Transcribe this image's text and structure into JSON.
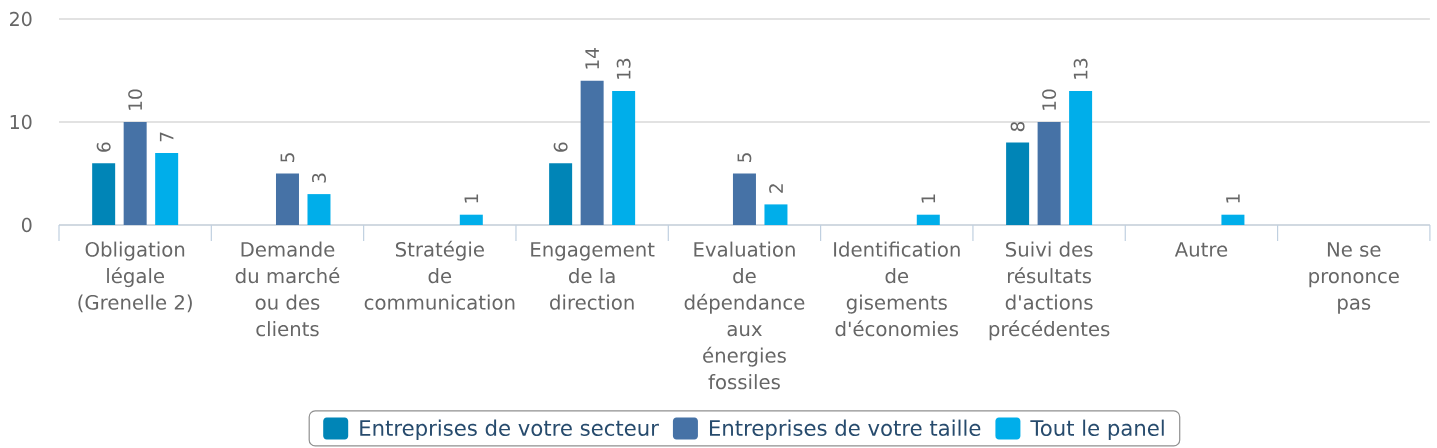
{
  "chart_data": {
    "type": "bar",
    "categories": [
      "Obligation légale (Grenelle 2)",
      "Demande du marché ou des clients",
      "Stratégie de communication",
      "Engagement de la direction",
      "Evaluation de dépendance aux énergies fossiles",
      "Identification de gisements d'économies",
      "Suivi des résultats d'actions précédentes",
      "Autre",
      "Ne se prononce pas"
    ],
    "series": [
      {
        "name": "Entreprises de votre secteur",
        "color": "#0085b7",
        "values": [
          6,
          null,
          null,
          6,
          null,
          null,
          8,
          null,
          null
        ]
      },
      {
        "name": "Entreprises de votre taille",
        "color": "#4672a6",
        "values": [
          10,
          5,
          null,
          14,
          5,
          null,
          10,
          null,
          null
        ]
      },
      {
        "name": "Tout le panel",
        "color": "#00aeea",
        "values": [
          7,
          3,
          1,
          13,
          2,
          1,
          13,
          1,
          null
        ]
      }
    ],
    "ylim": [
      0,
      20
    ],
    "yticks": [
      0,
      10,
      20
    ],
    "grid": "y",
    "legend": "bottom",
    "data_labels": true
  }
}
